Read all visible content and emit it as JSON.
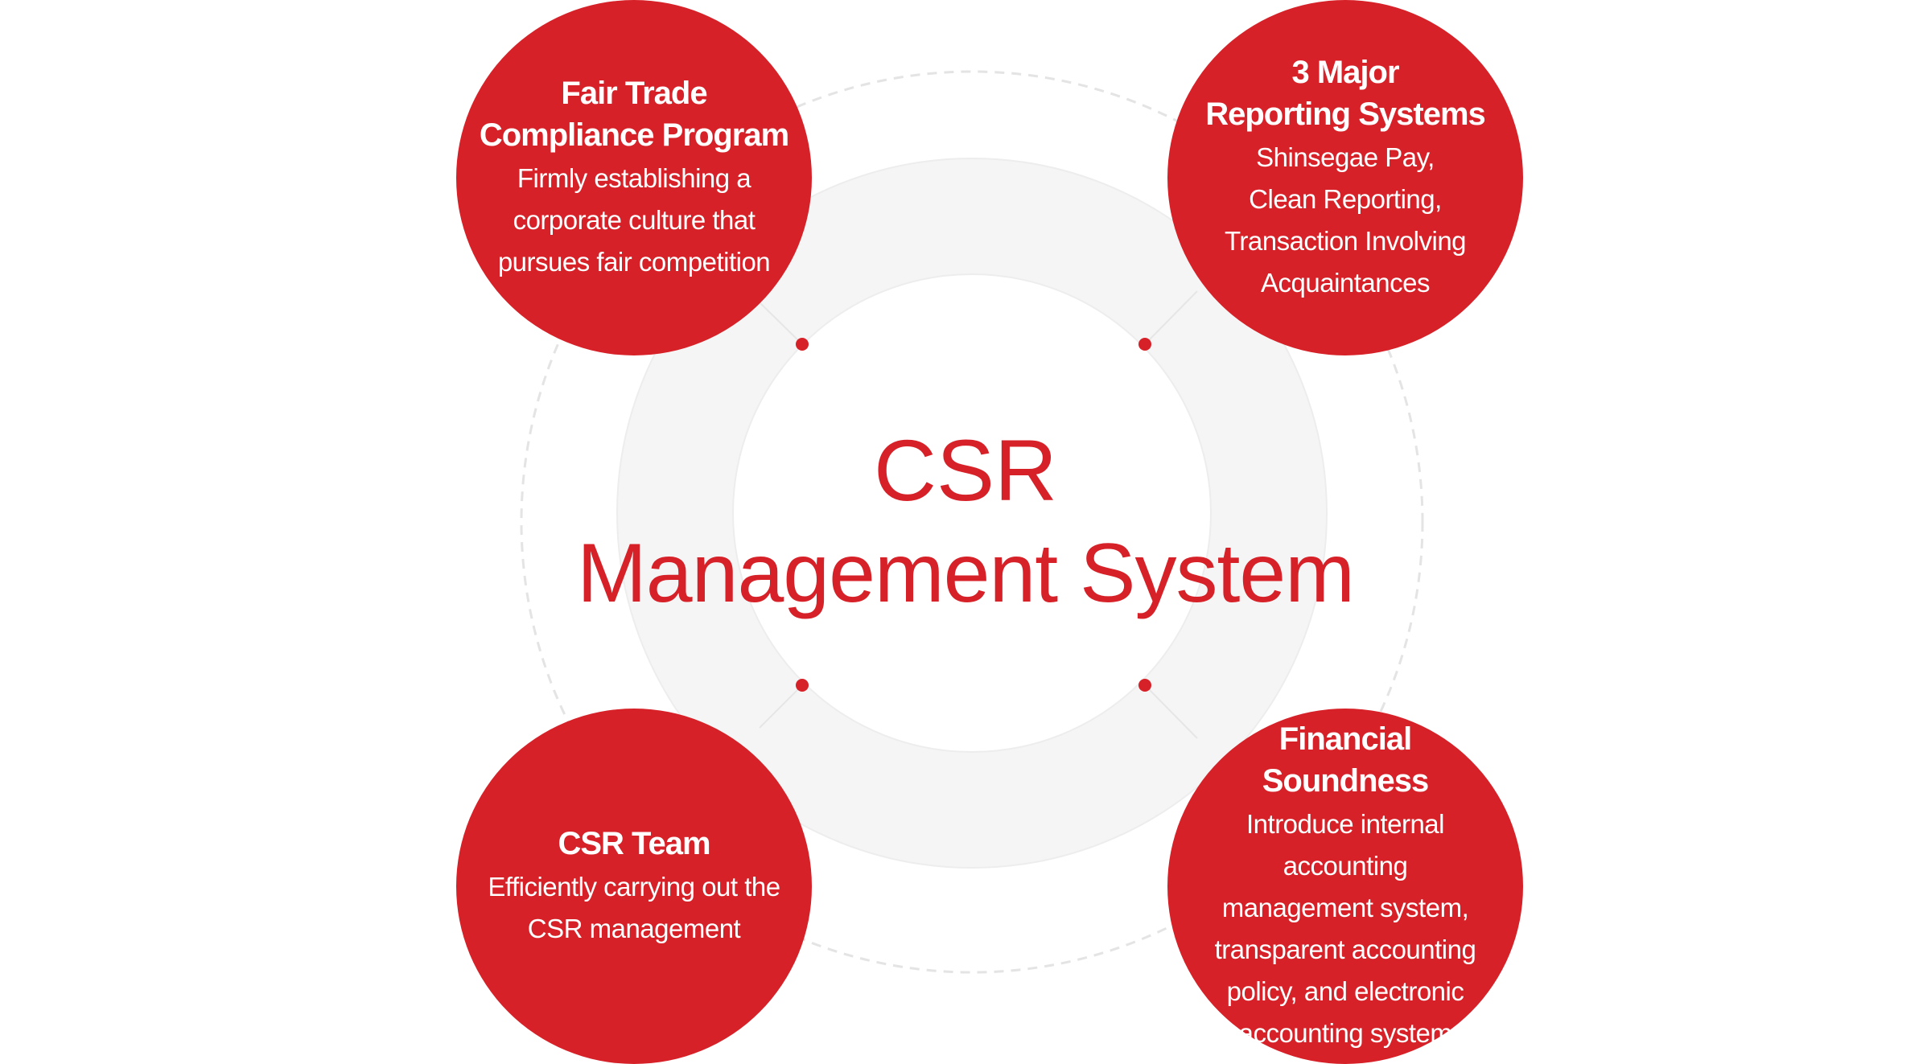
{
  "diagram": {
    "center_title": {
      "line1": "CSR",
      "line2": "Management System"
    },
    "nodes": [
      {
        "title": "Fair Trade\nCompliance Program",
        "description": "Firmly establishing a\ncorporate culture that\npursues fair competition"
      },
      {
        "title": "3 Major\nReporting Systems",
        "description": "Shinsegae Pay,\nClean Reporting,\nTransaction Involving\nAcquaintances"
      },
      {
        "title": "CSR Team",
        "description": "Efficiently carrying out the\nCSR management"
      },
      {
        "title": "Financial\nSoundness",
        "description": "Introduce internal accounting\nmanagement system,\ntransparent accounting\npolicy, and electronic\naccounting system"
      }
    ]
  },
  "colors": {
    "accent": "#d72128",
    "ring": "#f5f5f5",
    "ring_border": "#ededed",
    "dashed_circle": "#e4e4e4",
    "connector": "#e6e6e6"
  }
}
